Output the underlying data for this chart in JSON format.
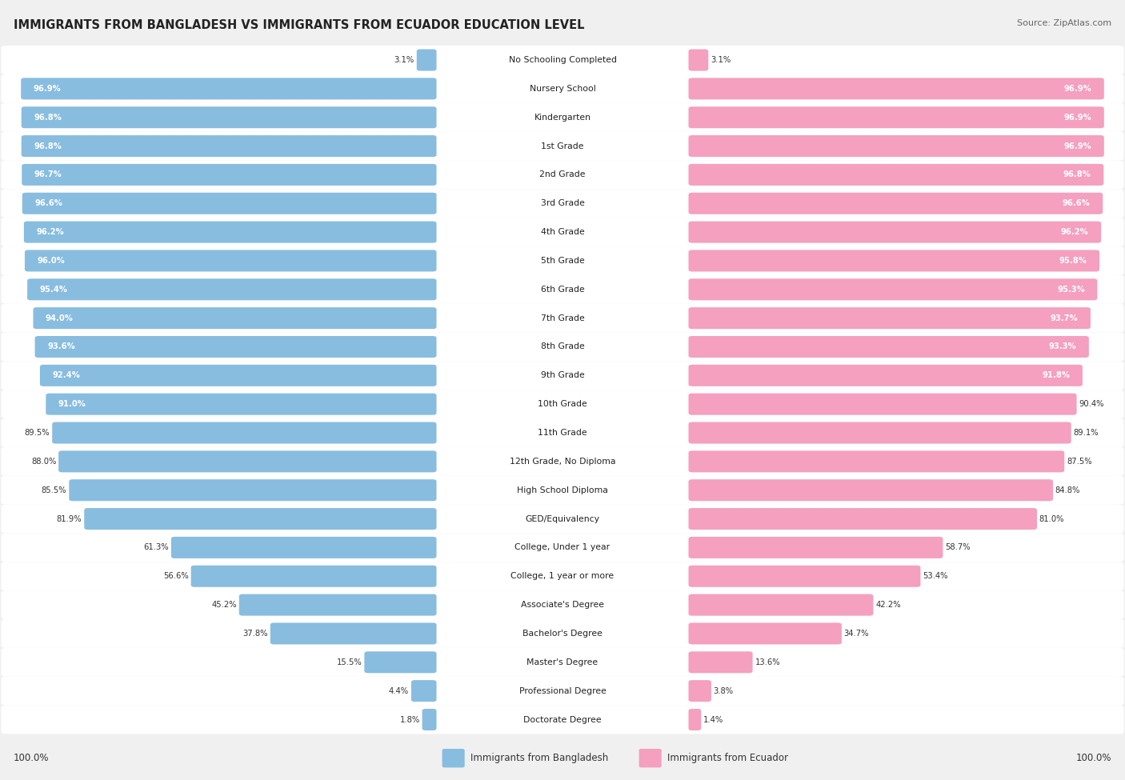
{
  "title": "IMMIGRANTS FROM BANGLADESH VS IMMIGRANTS FROM ECUADOR EDUCATION LEVEL",
  "source": "Source: ZipAtlas.com",
  "categories": [
    "No Schooling Completed",
    "Nursery School",
    "Kindergarten",
    "1st Grade",
    "2nd Grade",
    "3rd Grade",
    "4th Grade",
    "5th Grade",
    "6th Grade",
    "7th Grade",
    "8th Grade",
    "9th Grade",
    "10th Grade",
    "11th Grade",
    "12th Grade, No Diploma",
    "High School Diploma",
    "GED/Equivalency",
    "College, Under 1 year",
    "College, 1 year or more",
    "Associate's Degree",
    "Bachelor's Degree",
    "Master's Degree",
    "Professional Degree",
    "Doctorate Degree"
  ],
  "bangladesh_values": [
    3.1,
    96.9,
    96.8,
    96.8,
    96.7,
    96.6,
    96.2,
    96.0,
    95.4,
    94.0,
    93.6,
    92.4,
    91.0,
    89.5,
    88.0,
    85.5,
    81.9,
    61.3,
    56.6,
    45.2,
    37.8,
    15.5,
    4.4,
    1.8
  ],
  "ecuador_values": [
    3.1,
    96.9,
    96.9,
    96.9,
    96.8,
    96.6,
    96.2,
    95.8,
    95.3,
    93.7,
    93.3,
    91.8,
    90.4,
    89.1,
    87.5,
    84.8,
    81.0,
    58.7,
    53.4,
    42.2,
    34.7,
    13.6,
    3.8,
    1.4
  ],
  "bangladesh_color": "#88bde0",
  "ecuador_color": "#f4a0be",
  "background_color": "#f0f0f0",
  "bar_bg_color": "#ffffff",
  "row_bg_color": "#f7f7f7",
  "legend_bangladesh": "Immigrants from Bangladesh",
  "legend_ecuador": "Immigrants from Ecuador",
  "left_label": "100.0%",
  "right_label": "100.0%"
}
